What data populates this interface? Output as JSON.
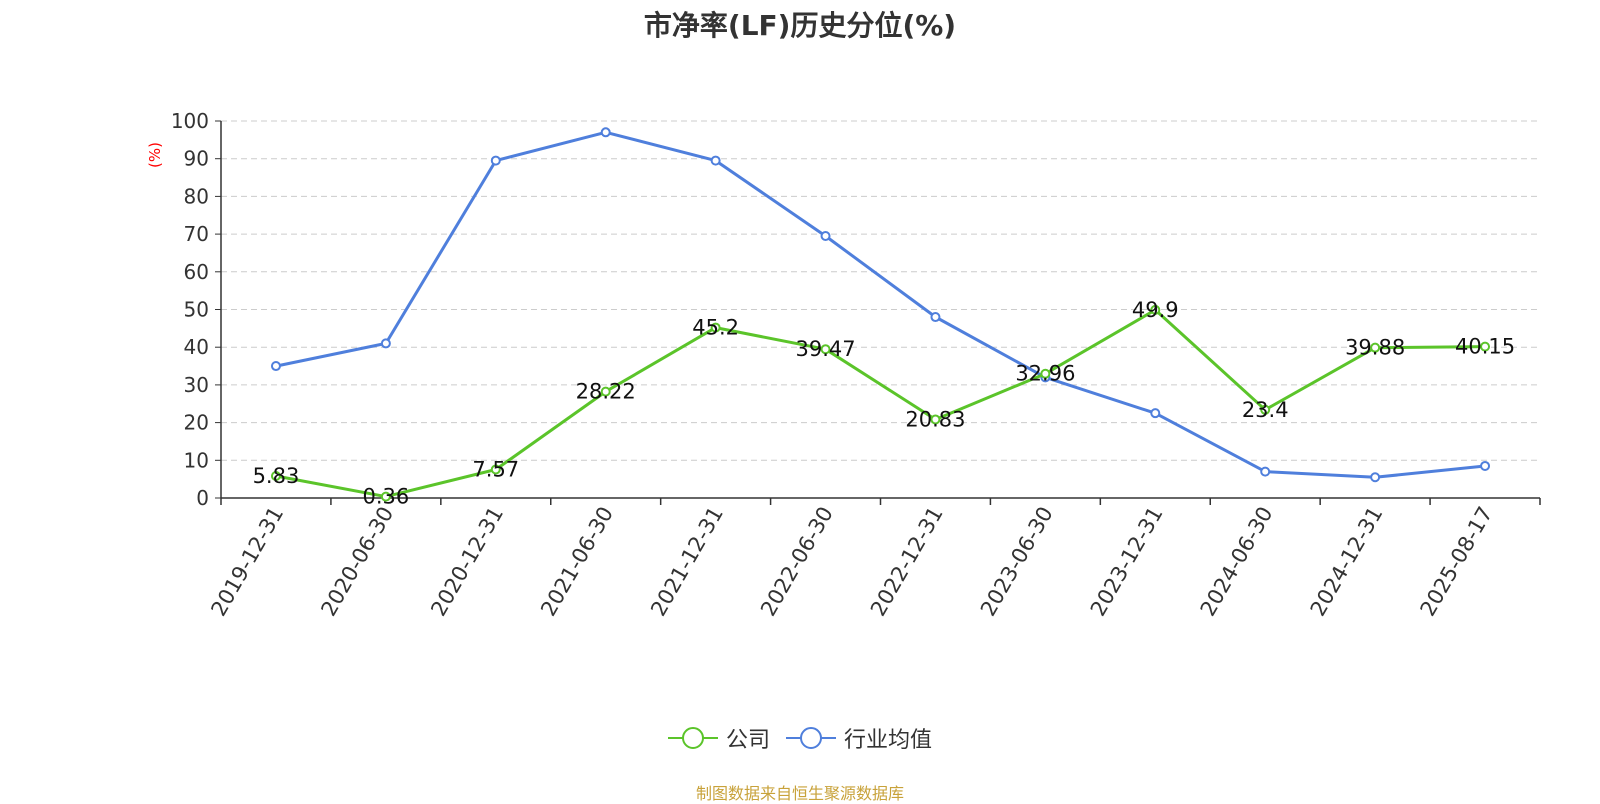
{
  "chart_data": {
    "type": "line",
    "title": "市净率(LF)历史分位(%)",
    "ylabel": "(%)",
    "xlabel": "",
    "ylim": [
      0,
      100
    ],
    "yticks": [
      0,
      10,
      20,
      30,
      40,
      50,
      60,
      70,
      80,
      90,
      100
    ],
    "grid": true,
    "legend_position": "bottom",
    "categories": [
      "2019-12-31",
      "2020-06-30",
      "2020-12-31",
      "2021-06-30",
      "2021-12-31",
      "2022-06-30",
      "2022-12-31",
      "2023-06-30",
      "2023-12-31",
      "2024-06-30",
      "2024-12-31",
      "2025-08-17"
    ],
    "series": [
      {
        "name": "公司",
        "color": "#5bc42a",
        "show_labels": true,
        "values": [
          5.83,
          0.36,
          7.57,
          28.22,
          45.2,
          39.47,
          20.83,
          32.96,
          49.9,
          23.4,
          39.88,
          40.15
        ]
      },
      {
        "name": "行业均值",
        "color": "#4f7fdc",
        "show_labels": false,
        "values": [
          35,
          41,
          89.5,
          97,
          89.5,
          69.5,
          48,
          32,
          22.5,
          7,
          5.5,
          8.5
        ]
      }
    ]
  },
  "source_text": "制图数据来自恒生聚源数据库"
}
